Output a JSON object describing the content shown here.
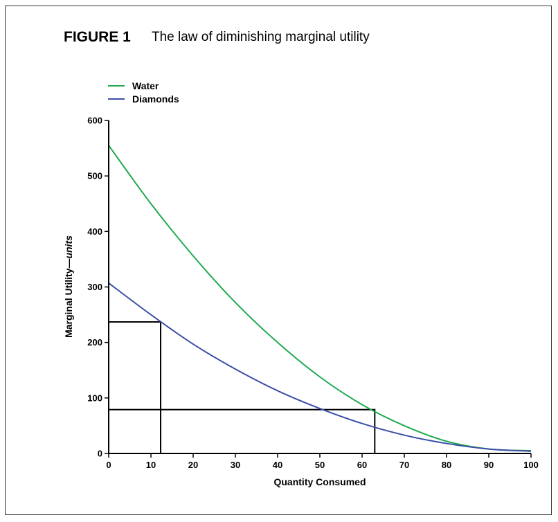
{
  "figure": {
    "label": "FIGURE 1",
    "title": "The law of diminishing marginal utility"
  },
  "chart_data": {
    "type": "line",
    "xlabel": "Quantity Consumed",
    "ylabel_main": "Marginal Utility—",
    "ylabel_unit": "units",
    "xlim": [
      0,
      100
    ],
    "ylim": [
      0,
      600
    ],
    "xticks": [
      0,
      10,
      20,
      30,
      40,
      50,
      60,
      70,
      80,
      90,
      100
    ],
    "yticks": [
      0,
      100,
      200,
      300,
      400,
      500,
      600
    ],
    "legend_position": "top-left",
    "grid": false,
    "series": [
      {
        "name": "Water",
        "color": "#1faa4f",
        "x": [
          0,
          10,
          20,
          30,
          40,
          50,
          60,
          70,
          80,
          90,
          100
        ],
        "y": [
          555,
          450,
          356,
          272,
          200,
          138,
          88,
          50,
          22,
          8,
          5
        ]
      },
      {
        "name": "Diamonds",
        "color": "#3a4ea8",
        "x": [
          0,
          10,
          20,
          30,
          40,
          50,
          60,
          70,
          80,
          90,
          100
        ],
        "y": [
          307,
          250,
          197,
          152,
          113,
          81,
          54,
          33,
          18,
          8,
          4
        ]
      }
    ],
    "annotations": [
      {
        "type": "rect",
        "x0": 0,
        "x1": 12.3,
        "y0": 0,
        "y1": 237
      },
      {
        "type": "rect",
        "x0": 0,
        "x1": 63,
        "y0": 0,
        "y1": 79
      }
    ]
  }
}
